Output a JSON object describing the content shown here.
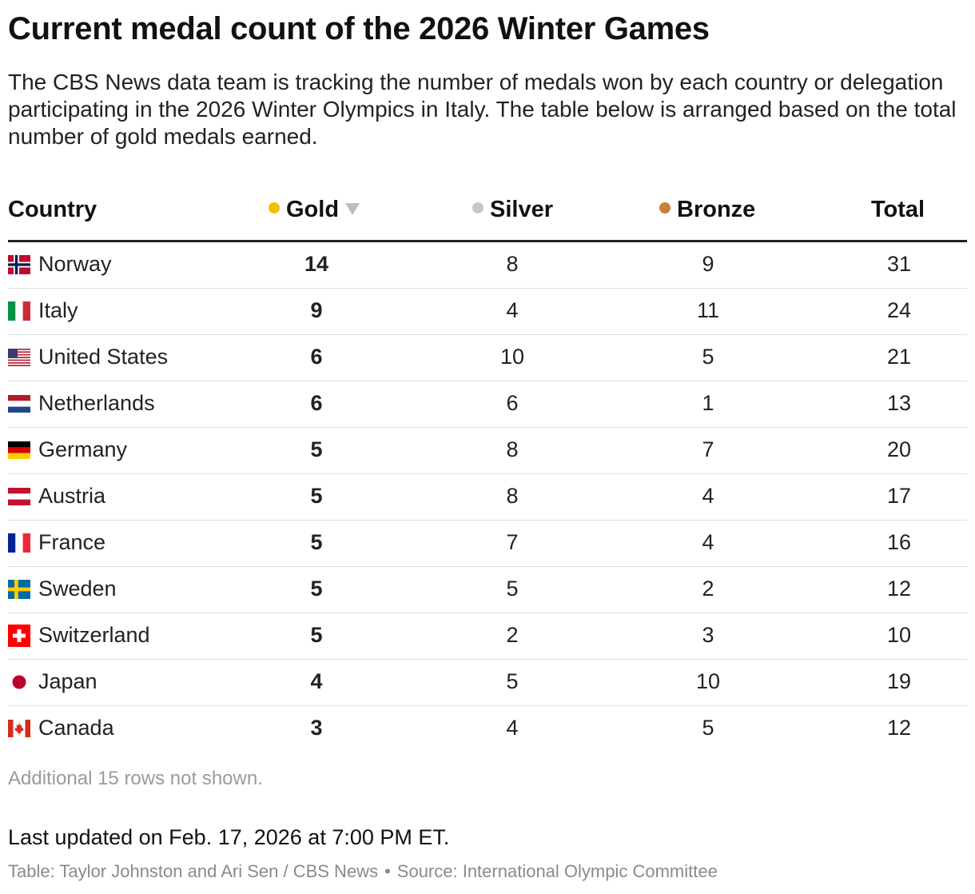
{
  "title": "Current medal count of the 2026 Winter Games",
  "subtitle": "The CBS News data team is tracking the number of medals won by each country or delegation participating in the 2026 Winter Olympics in Italy. The table below is arranged based on the total number of gold medals earned.",
  "colors": {
    "gold": "#f2c200",
    "silver": "#c8c8c8",
    "bronze": "#c8803a"
  },
  "chart_data": {
    "type": "table",
    "columns": [
      "Country",
      "Gold",
      "Silver",
      "Bronze",
      "Total"
    ],
    "sort_column": "Gold",
    "sort_order": "descending",
    "rows": [
      {
        "country": "Norway",
        "gold": 14,
        "silver": 8,
        "bronze": 9,
        "total": 31,
        "flag": "norway-flag-icon"
      },
      {
        "country": "Italy",
        "gold": 9,
        "silver": 4,
        "bronze": 11,
        "total": 24,
        "flag": "italy-flag-icon"
      },
      {
        "country": "United States",
        "gold": 6,
        "silver": 10,
        "bronze": 5,
        "total": 21,
        "flag": "united-states-flag-icon"
      },
      {
        "country": "Netherlands",
        "gold": 6,
        "silver": 6,
        "bronze": 1,
        "total": 13,
        "flag": "netherlands-flag-icon"
      },
      {
        "country": "Germany",
        "gold": 5,
        "silver": 8,
        "bronze": 7,
        "total": 20,
        "flag": "germany-flag-icon"
      },
      {
        "country": "Austria",
        "gold": 5,
        "silver": 8,
        "bronze": 4,
        "total": 17,
        "flag": "austria-flag-icon"
      },
      {
        "country": "France",
        "gold": 5,
        "silver": 7,
        "bronze": 4,
        "total": 16,
        "flag": "france-flag-icon"
      },
      {
        "country": "Sweden",
        "gold": 5,
        "silver": 5,
        "bronze": 2,
        "total": 12,
        "flag": "sweden-flag-icon"
      },
      {
        "country": "Switzerland",
        "gold": 5,
        "silver": 2,
        "bronze": 3,
        "total": 10,
        "flag": "switzerland-flag-icon"
      },
      {
        "country": "Japan",
        "gold": 4,
        "silver": 5,
        "bronze": 10,
        "total": 19,
        "flag": "japan-flag-icon"
      },
      {
        "country": "Canada",
        "gold": 3,
        "silver": 4,
        "bronze": 5,
        "total": 12,
        "flag": "canada-flag-icon"
      }
    ]
  },
  "footer": {
    "note": "Additional 15 rows not shown.",
    "updated": "Last updated on Feb. 17, 2026 at 7:00 PM ET.",
    "credit": "Table: Taylor Johnston and Ari Sen / CBS News",
    "bullet": "•",
    "source": "Source: International Olympic Committee"
  }
}
